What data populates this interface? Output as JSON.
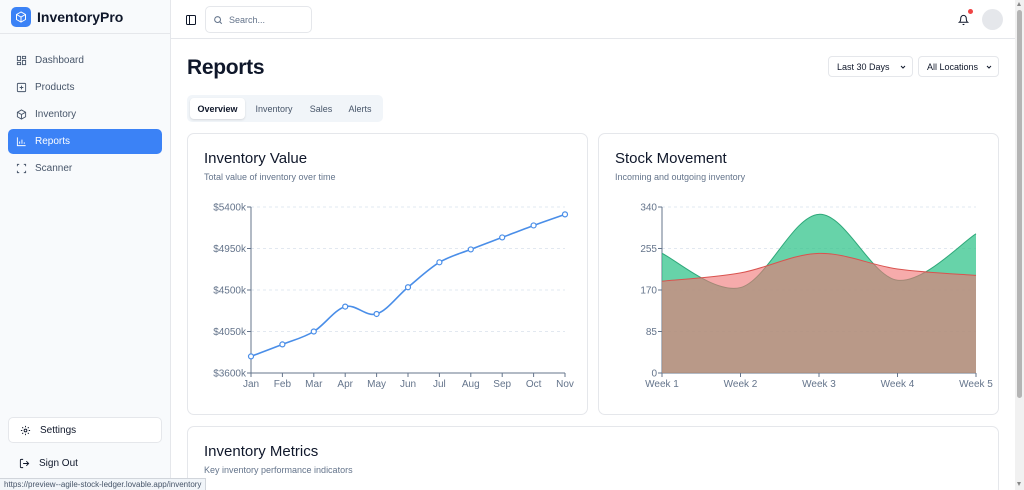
{
  "app": {
    "name": "InventoryPro"
  },
  "sidebar": {
    "items": [
      {
        "label": "Dashboard",
        "icon": "dashboard-icon",
        "active": false
      },
      {
        "label": "Products",
        "icon": "plus-square-icon",
        "active": false
      },
      {
        "label": "Inventory",
        "icon": "box-icon",
        "active": false
      },
      {
        "label": "Reports",
        "icon": "bar-chart-icon",
        "active": true
      },
      {
        "label": "Scanner",
        "icon": "scan-icon",
        "active": false
      }
    ],
    "settings_label": "Settings",
    "signout_label": "Sign Out"
  },
  "topbar": {
    "search_placeholder": "Search..."
  },
  "status_url": "https://preview--agile-stock-ledger.lovable.app/inventory",
  "page": {
    "title": "Reports",
    "period_select": "Last 30 Days",
    "location_select": "All Locations",
    "tabs": [
      "Overview",
      "Inventory",
      "Sales",
      "Alerts"
    ],
    "active_tab": "Overview"
  },
  "colors": {
    "accent": "#3b82f6",
    "line": "#4a8ee8",
    "incoming": "#34c48c",
    "outgoing": "#f07373",
    "notification": "#ef4444"
  },
  "cards": {
    "inventory_value": {
      "title": "Inventory Value",
      "subtitle": "Total value of inventory over time"
    },
    "stock_movement": {
      "title": "Stock Movement",
      "subtitle": "Incoming and outgoing inventory"
    },
    "inventory_metrics": {
      "title": "Inventory Metrics",
      "subtitle": "Key inventory performance indicators"
    }
  },
  "chart_data": [
    {
      "type": "line",
      "title": "Inventory Value",
      "categories": [
        "Jan",
        "Feb",
        "Mar",
        "Apr",
        "May",
        "Jun",
        "Jul",
        "Aug",
        "Sep",
        "Oct",
        "Nov"
      ],
      "values": [
        3780,
        3910,
        4050,
        4320,
        4240,
        4530,
        4800,
        4940,
        5070,
        5200,
        5320
      ],
      "ylim": [
        3600,
        5400
      ],
      "yticks": [
        "$3600k",
        "$4050k",
        "$4500k",
        "$4950k",
        "$5400k"
      ],
      "grid": true
    },
    {
      "type": "area",
      "title": "Stock Movement",
      "categories": [
        "Week 1",
        "Week 2",
        "Week 3",
        "Week 4",
        "Week 5"
      ],
      "series": [
        {
          "values": [
            245,
            175,
            325,
            190,
            285
          ]
        },
        {
          "values": [
            188,
            205,
            245,
            213,
            200
          ]
        }
      ],
      "ylim": [
        0,
        340
      ],
      "yticks": [
        "0",
        "85",
        "170",
        "255",
        "340"
      ],
      "grid": true
    }
  ]
}
